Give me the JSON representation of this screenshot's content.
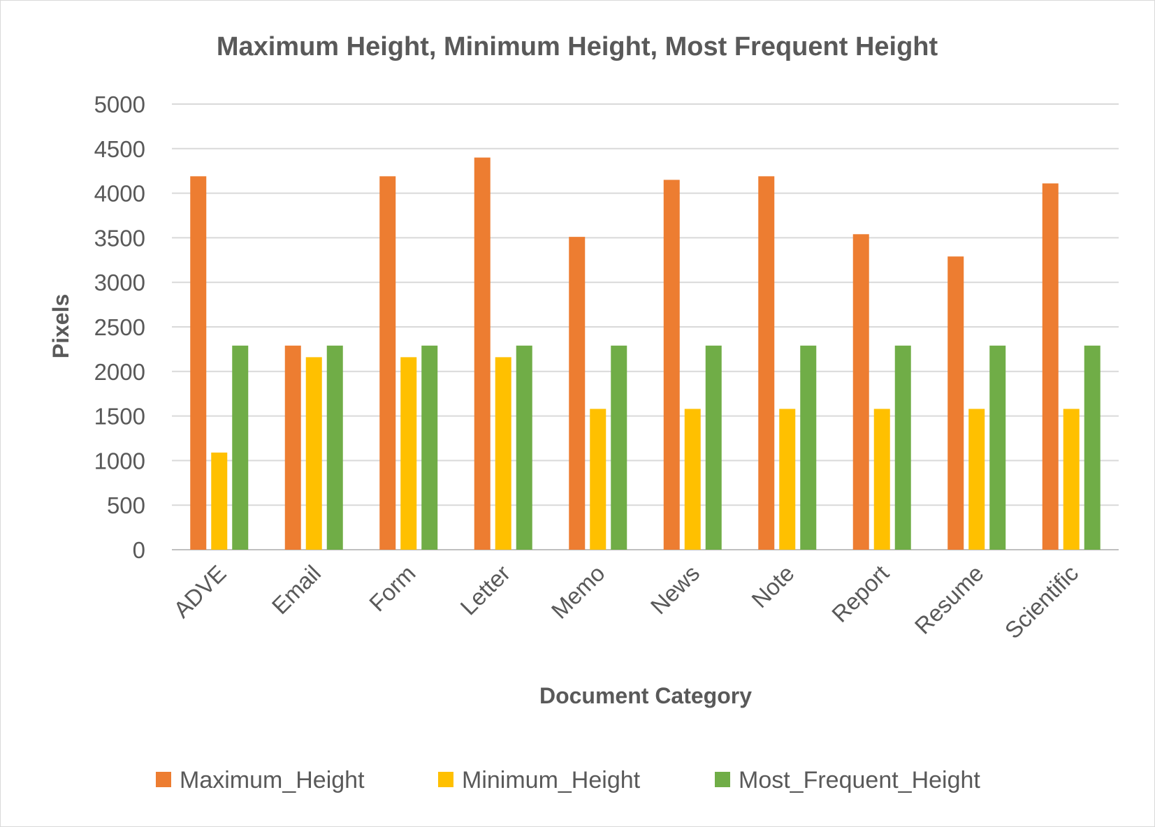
{
  "chart_data": {
    "type": "bar",
    "title": "Maximum Height, Minimum Height, Most Frequent Height",
    "xlabel": "Document Category",
    "ylabel": "Pixels",
    "ylim": [
      0,
      5000
    ],
    "yticks": [
      0,
      500,
      1000,
      1500,
      2000,
      2500,
      3000,
      3500,
      4000,
      4500,
      5000
    ],
    "grid": true,
    "legend_position": "bottom",
    "categories": [
      "ADVE",
      "Email",
      "Form",
      "Letter",
      "Memo",
      "News",
      "Note",
      "Report",
      "Resume",
      "Scientific"
    ],
    "series": [
      {
        "name": "Maximum_Height",
        "color": "#ED7D31",
        "values": [
          4190,
          2290,
          4190,
          4400,
          3510,
          4150,
          4190,
          3540,
          3290,
          4110
        ]
      },
      {
        "name": "Minimum_Height",
        "color": "#FFC000",
        "values": [
          1090,
          2160,
          2160,
          2160,
          1580,
          1580,
          1580,
          1580,
          1580,
          1580
        ]
      },
      {
        "name": "Most_Frequent_Height",
        "color": "#70AD47",
        "values": [
          2290,
          2290,
          2290,
          2290,
          2290,
          2290,
          2290,
          2290,
          2290,
          2290
        ]
      }
    ]
  }
}
